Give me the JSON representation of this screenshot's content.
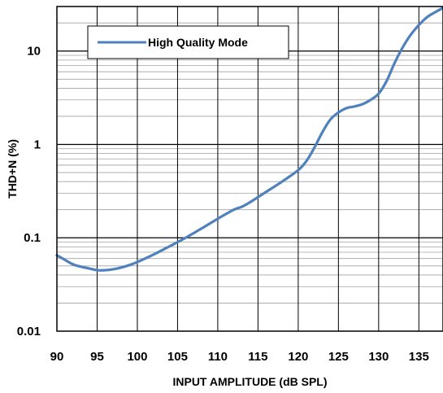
{
  "chart_data": {
    "type": "line",
    "title": "",
    "xlabel": "INPUT AMPLITUDE (dB SPL)",
    "ylabel": "THD+N (%)",
    "xlim": [
      90,
      138
    ],
    "ylim": [
      0.01,
      30
    ],
    "yscale": "log",
    "grid": true,
    "legend_position": "top-left",
    "x_ticks": [
      90,
      95,
      100,
      105,
      110,
      115,
      120,
      125,
      130,
      135
    ],
    "x_tick_labels": [
      "90",
      "95",
      "100",
      "105",
      "110",
      "115",
      "120",
      "125",
      "130",
      "135"
    ],
    "y_major_ticks": [
      0.01,
      0.1,
      1,
      10
    ],
    "y_tick_labels": [
      "0.01",
      "0.1",
      "1",
      "10"
    ],
    "series": [
      {
        "name": "High Quality Mode",
        "color": "#4f81bd",
        "x": [
          90,
          91,
          92,
          93,
          94,
          95,
          96,
          97,
          98,
          99,
          100,
          102,
          104,
          106,
          108,
          110,
          112,
          113,
          114,
          116,
          118,
          120,
          121,
          122,
          123,
          124,
          125,
          126,
          127,
          128,
          129,
          130,
          131,
          132,
          133,
          134,
          135,
          136,
          137,
          138
        ],
        "values": [
          0.065,
          0.058,
          0.052,
          0.049,
          0.047,
          0.045,
          0.045,
          0.046,
          0.048,
          0.051,
          0.055,
          0.066,
          0.081,
          0.1,
          0.126,
          0.16,
          0.2,
          0.215,
          0.24,
          0.31,
          0.4,
          0.53,
          0.66,
          0.92,
          1.35,
          1.85,
          2.2,
          2.45,
          2.55,
          2.7,
          3.0,
          3.5,
          4.8,
          7.5,
          11,
          15,
          19,
          23,
          26,
          29
        ]
      }
    ]
  }
}
